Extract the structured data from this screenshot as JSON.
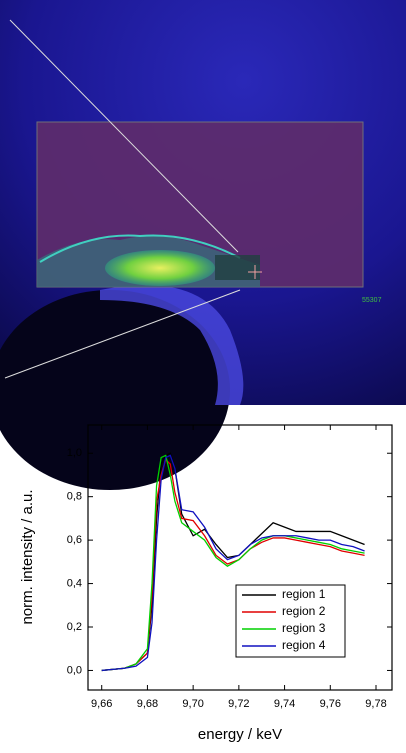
{
  "image": {
    "label": "55307"
  },
  "chart_data": {
    "type": "line",
    "x_label": "energy / keV",
    "y_label": "norm. intensity / a.u.",
    "x": [
      9.66,
      9.67,
      9.675,
      9.68,
      9.682,
      9.684,
      9.686,
      9.688,
      9.69,
      9.692,
      9.695,
      9.7,
      9.705,
      9.71,
      9.715,
      9.72,
      9.725,
      9.73,
      9.735,
      9.74,
      9.745,
      9.75,
      9.755,
      9.76,
      9.765,
      9.77,
      9.775
    ],
    "series": [
      {
        "name": "region 1",
        "color": "#000000",
        "values": [
          0,
          0.01,
          0.03,
          0.08,
          0.3,
          0.7,
          0.95,
          0.99,
          1.0,
          0.93,
          0.72,
          0.62,
          0.65,
          0.58,
          0.52,
          0.53,
          0.58,
          0.63,
          0.68,
          0.66,
          0.64,
          0.64,
          0.64,
          0.64,
          0.62,
          0.6,
          0.58
        ]
      },
      {
        "name": "region 2",
        "color": "#e00000",
        "values": [
          0,
          0.01,
          0.03,
          0.08,
          0.35,
          0.78,
          0.9,
          0.97,
          0.95,
          0.82,
          0.7,
          0.69,
          0.62,
          0.53,
          0.49,
          0.51,
          0.56,
          0.59,
          0.61,
          0.61,
          0.6,
          0.59,
          0.58,
          0.57,
          0.55,
          0.54,
          0.53
        ]
      },
      {
        "name": "region 3",
        "color": "#00d000",
        "values": [
          0,
          0.01,
          0.03,
          0.1,
          0.4,
          0.85,
          0.98,
          0.99,
          0.9,
          0.78,
          0.68,
          0.64,
          0.6,
          0.52,
          0.48,
          0.51,
          0.56,
          0.6,
          0.62,
          0.62,
          0.61,
          0.6,
          0.59,
          0.58,
          0.56,
          0.55,
          0.54
        ]
      },
      {
        "name": "region 4",
        "color": "#1010c0",
        "values": [
          0,
          0.01,
          0.02,
          0.06,
          0.22,
          0.6,
          0.88,
          0.98,
          0.99,
          0.93,
          0.74,
          0.73,
          0.66,
          0.56,
          0.51,
          0.53,
          0.58,
          0.61,
          0.62,
          0.62,
          0.62,
          0.61,
          0.6,
          0.6,
          0.58,
          0.57,
          0.55
        ]
      }
    ],
    "xlim": [
      9.654,
      9.787
    ],
    "ylim": [
      -0.09,
      1.13
    ],
    "xticks": [
      {
        "value": 9.66,
        "label": "9,66"
      },
      {
        "value": 9.68,
        "label": "9,68"
      },
      {
        "value": 9.7,
        "label": "9,70"
      },
      {
        "value": 9.72,
        "label": "9,72"
      },
      {
        "value": 9.74,
        "label": "9,74"
      },
      {
        "value": 9.76,
        "label": "9,76"
      },
      {
        "value": 9.78,
        "label": "9,78"
      }
    ],
    "yticks": [
      {
        "value": 0,
        "label": "0,0"
      },
      {
        "value": 0.2,
        "label": "0,2"
      },
      {
        "value": 0.4,
        "label": "0,4"
      },
      {
        "value": 0.6,
        "label": "0,6"
      },
      {
        "value": 0.8,
        "label": "0,8"
      },
      {
        "value": 1.0,
        "label": "1,0"
      }
    ],
    "legend": "lower right"
  }
}
